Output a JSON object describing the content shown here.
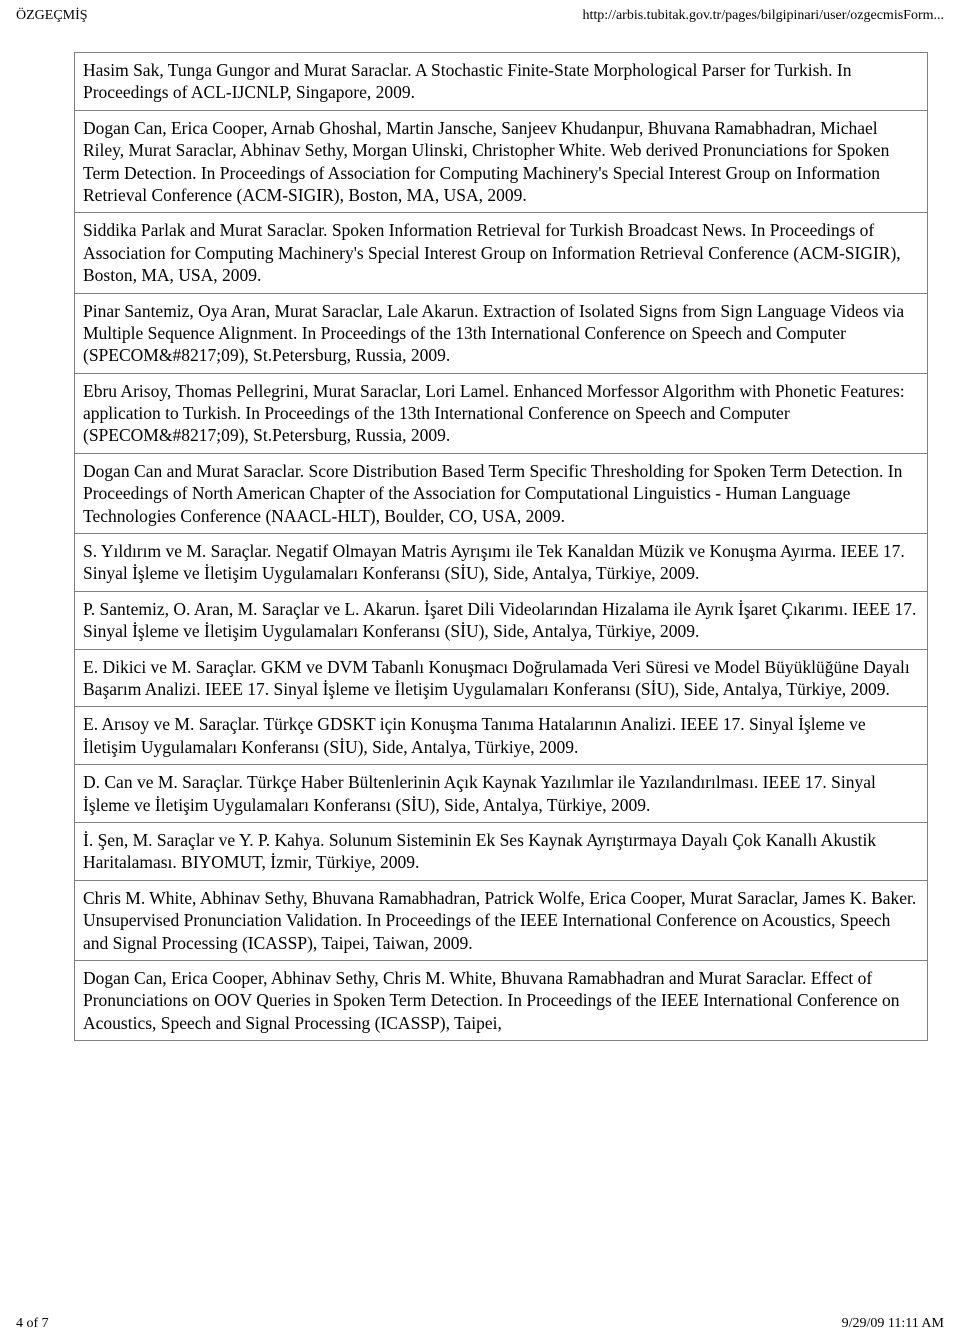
{
  "header": {
    "left": "ÖZGEÇMİŞ",
    "right": "http://arbis.tubitak.gov.tr/pages/bilgipinari/user/ozgecmisForm..."
  },
  "publications": [
    "Hasim Sak, Tunga Gungor and Murat Saraclar. A Stochastic Finite-State Morphological Parser for Turkish. In Proceedings of ACL-IJCNLP, Singapore, 2009.",
    "Dogan Can, Erica Cooper, Arnab Ghoshal, Martin Jansche, Sanjeev Khudanpur, Bhuvana Ramabhadran, Michael Riley, Murat Saraclar, Abhinav Sethy, Morgan Ulinski, Christopher White. Web derived Pronunciations for Spoken Term Detection. In Proceedings of Association for Computing Machinery's Special Interest Group on Information Retrieval Conference (ACM-SIGIR), Boston, MA, USA, 2009.",
    "Siddika Parlak and Murat Saraclar. Spoken Information Retrieval for Turkish Broadcast News. In Proceedings of Association for Computing Machinery's Special Interest Group on Information Retrieval Conference (ACM-SIGIR), Boston, MA, USA, 2009.",
    "Pinar Santemiz, Oya Aran, Murat Saraclar, Lale Akarun. Extraction of Isolated Signs from Sign Language Videos via Multiple Sequence Alignment. In Proceedings of the 13th International Conference on Speech and Computer (SPECOM&#8217;09), St.Petersburg, Russia, 2009.",
    "Ebru Arisoy, Thomas Pellegrini, Murat Saraclar, Lori Lamel. Enhanced Morfessor Algorithm with Phonetic Features: application to Turkish. In Proceedings of the 13th International Conference on Speech and Computer (SPECOM&#8217;09), St.Petersburg, Russia, 2009.",
    "Dogan Can and Murat Saraclar. Score Distribution Based Term Specific Thresholding for Spoken Term Detection. In Proceedings of North American Chapter of the Association for Computational Linguistics - Human Language Technologies Conference (NAACL-HLT), Boulder, CO, USA, 2009.",
    "S. Yıldırım ve M. Saraçlar. Negatif Olmayan Matris Ayrışımı ile Tek Kanaldan Müzik ve Konuşma Ayırma. IEEE 17. Sinyal İşleme ve İletişim Uygulamaları Konferansı (SİU), Side, Antalya, Türkiye, 2009.",
    "P. Santemiz, O. Aran, M. Saraçlar ve L. Akarun. İşaret Dili Videolarından Hizalama ile Ayrık İşaret Çıkarımı. IEEE 17. Sinyal İşleme ve İletişim Uygulamaları Konferansı (SİU), Side, Antalya, Türkiye, 2009.",
    "E. Dikici ve M. Saraçlar. GKM ve DVM Tabanlı Konuşmacı Doğrulamada Veri Süresi ve Model Büyüklüğüne Dayalı Başarım Analizi. IEEE 17. Sinyal İşleme ve İletişim Uygulamaları Konferansı (SİU), Side, Antalya, Türkiye, 2009.",
    "E. Arısoy ve M. Saraçlar. Türkçe GDSKT için Konuşma Tanıma Hatalarının Analizi. IEEE 17. Sinyal İşleme ve İletişim Uygulamaları Konferansı (SİU), Side, Antalya, Türkiye, 2009.",
    "D. Can ve M. Saraçlar. Türkçe Haber Bültenlerinin Açık Kaynak Yazılımlar ile Yazılandırılması. IEEE 17. Sinyal İşleme ve İletişim Uygulamaları Konferansı (SİU), Side, Antalya, Türkiye, 2009.",
    "İ. Şen, M. Saraçlar ve Y. P. Kahya. Solunum Sisteminin Ek Ses Kaynak Ayrıştırmaya Dayalı Çok Kanallı Akustik Haritalaması. BIYOMUT, İzmir, Türkiye, 2009.",
    "Chris M. White, Abhinav Sethy, Bhuvana Ramabhadran, Patrick Wolfe, Erica Cooper, Murat Saraclar, James K. Baker. Unsupervised Pronunciation Validation. In Proceedings of the IEEE International Conference on Acoustics, Speech and Signal Processing (ICASSP), Taipei, Taiwan, 2009.",
    "Dogan Can, Erica Cooper, Abhinav Sethy, Chris M. White, Bhuvana Ramabhadran and Murat Saraclar. Effect of Pronunciations on OOV Queries in Spoken Term Detection. In Proceedings of the IEEE International Conference on Acoustics, Speech and Signal Processing (ICASSP), Taipei,"
  ],
  "footer": {
    "left": "4 of 7",
    "right": "9/29/09 11:11 AM"
  }
}
